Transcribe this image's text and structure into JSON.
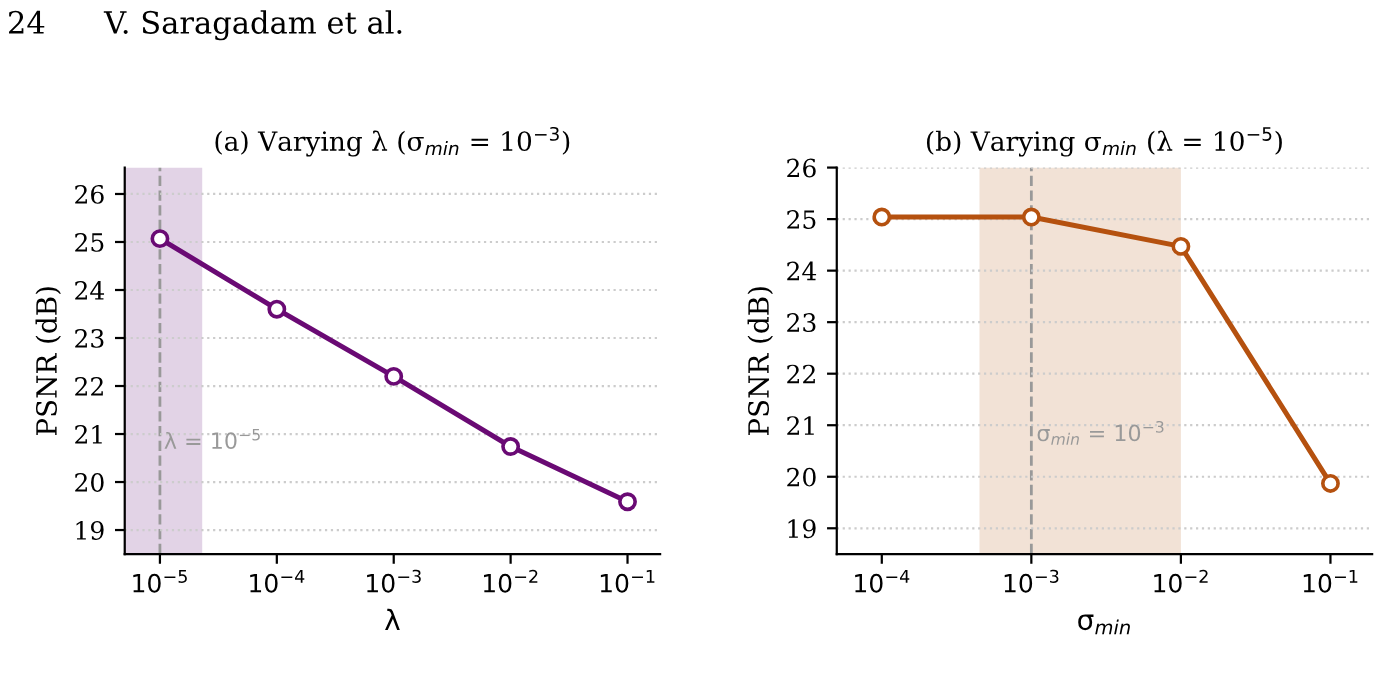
{
  "chart_data": [
    {
      "type": "line",
      "title": "(a) Varying λ (σ$_{min}$ = 10$^{−3}$)",
      "xlabel": "λ",
      "ylabel": "PSNR (dB)",
      "annotations": [
        "24      V. Saragadam et al."
      ],
      "log": "x",
      "x": [
        1e-05,
        0.0001,
        0.001,
        0.01,
        0.1
      ],
      "series": [
        {
          "color": "#6a0a74",
          "values": [
            25.07,
            23.6,
            22.2,
            20.74,
            19.59
          ]
        }
      ],
      "xlim": [
        5e-06,
        0.19
      ],
      "xticks": [
        {
          "value": 1e-05,
          "label": "10$^{−5}$"
        },
        {
          "value": 0.0001,
          "label": "10$^{−4}$"
        },
        {
          "value": 0.001,
          "label": "10$^{−3}$"
        },
        {
          "value": 0.01,
          "label": "10$^{−2}$"
        },
        {
          "value": 0.1,
          "label": "10$^{−1}$"
        }
      ],
      "ylim": [
        18.5,
        26.55
      ],
      "yticks": [
        19,
        20,
        21,
        22,
        23,
        24,
        25,
        26
      ],
      "grid": "y",
      "marker": "circle",
      "line_style": "solid",
      "ref_lines": [
        {
          "axis": "x",
          "value": 1e-05,
          "label": "λ = 10$^{−5}$",
          "color": "#999999",
          "line_style": "dashed"
        }
      ],
      "bands": [
        {
          "axis": "x",
          "from": 5e-06,
          "to": 2.3e-05,
          "color": "#e2d3e6"
        }
      ]
    },
    {
      "type": "line",
      "title": "(b) Varying σ$_{min}$ (λ = 10$^{−5}$)",
      "xlabel": "σ$_{min}$",
      "ylabel": "PSNR (dB)",
      "log": "x",
      "x": [
        0.0001,
        0.001,
        0.01,
        0.1
      ],
      "series": [
        {
          "color": "#b5510f",
          "values": [
            25.04,
            25.04,
            24.47,
            19.87
          ]
        }
      ],
      "xlim": [
        5e-05,
        0.19
      ],
      "xticks": [
        {
          "value": 0.0001,
          "label": "10$^{−4}$"
        },
        {
          "value": 0.001,
          "label": "10$^{−3}$"
        },
        {
          "value": 0.01,
          "label": "10$^{−2}$"
        },
        {
          "value": 0.1,
          "label": "10$^{−1}$"
        }
      ],
      "ylim": [
        18.5,
        26
      ],
      "yticks": [
        19,
        20,
        21,
        22,
        23,
        24,
        25,
        26
      ],
      "grid": "y",
      "marker": "circle",
      "line_style": "solid",
      "annotations": [
        {
          "text": "σ$_{min}$ = 10$^{−3}$",
          "x": 0.001,
          "y": 20.6
        }
      ],
      "ref_lines": [
        {
          "axis": "x",
          "value": 0.001,
          "color": "#999999",
          "line_style": "dashed"
        }
      ],
      "bands": [
        {
          "axis": "x",
          "from": 0.00045,
          "to": 0.01,
          "color": "#f2e2d6"
        }
      ]
    }
  ]
}
